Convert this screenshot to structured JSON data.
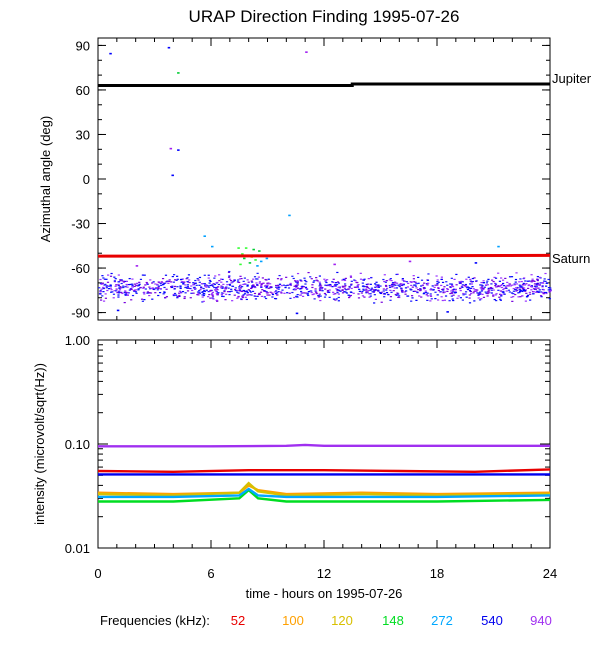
{
  "title": "URAP Direction Finding  1995-07-26",
  "xlabel": "time - hours on 1995-07-26",
  "freq_label": "Frequencies (kHz):",
  "chart_data": [
    {
      "type": "scatter",
      "title": "URAP Direction Finding  1995-07-26",
      "ylabel": "Azimuthal angle (deg)",
      "xlim": [
        0,
        24
      ],
      "ylim": [
        -95,
        95
      ],
      "xticks": [
        0,
        6,
        12,
        18,
        24
      ],
      "yticks": [
        90,
        60,
        30,
        0,
        -30,
        -60,
        -90
      ],
      "ytick_labels": [
        "90",
        "60",
        "30",
        "0",
        "-30",
        "-60",
        "-90"
      ],
      "reference_lines": [
        {
          "name": "Jupiter",
          "color": "#000000",
          "points": [
            [
              0,
              63
            ],
            [
              13.5,
              63
            ],
            [
              13.5,
              64
            ],
            [
              24,
              64
            ]
          ]
        },
        {
          "name": "Saturn",
          "color": "#e80000",
          "points": [
            [
              0,
              -52
            ],
            [
              24,
              -51.5
            ]
          ]
        }
      ],
      "main_band": {
        "y_center": -73,
        "y_spread": 12,
        "colors": [
          "#9933ff",
          "#7700dd",
          "#0000ff",
          "#1a1aff"
        ]
      },
      "scatter_points": [
        {
          "x": 0.6,
          "y": 85,
          "color": "#0000ff"
        },
        {
          "x": 3.7,
          "y": 89,
          "color": "#0000ff"
        },
        {
          "x": 4.2,
          "y": 72,
          "color": "#00cc33"
        },
        {
          "x": 11,
          "y": 86,
          "color": "#a020f0"
        },
        {
          "x": 3.8,
          "y": 21,
          "color": "#a020f0"
        },
        {
          "x": 4.2,
          "y": 20,
          "color": "#0000ff"
        },
        {
          "x": 3.9,
          "y": 3,
          "color": "#0000ff"
        },
        {
          "x": 10.1,
          "y": -24,
          "color": "#00a0ff"
        },
        {
          "x": 5.6,
          "y": -38,
          "color": "#00a0ff"
        },
        {
          "x": 21.2,
          "y": -45,
          "color": "#00a0ff"
        },
        {
          "x": 6.0,
          "y": -45,
          "color": "#00a0ff"
        },
        {
          "x": 7.4,
          "y": -46,
          "color": "#33ff33"
        },
        {
          "x": 7.8,
          "y": -46,
          "color": "#33ff33"
        },
        {
          "x": 8.2,
          "y": -47,
          "color": "#00cc33"
        },
        {
          "x": 8.5,
          "y": -48,
          "color": "#00cc33"
        },
        {
          "x": 7.6,
          "y": -50,
          "color": "#33ff33"
        },
        {
          "x": 7.9,
          "y": -51,
          "color": "#e8c800"
        },
        {
          "x": 8.1,
          "y": -52,
          "color": "#ffaa00"
        },
        {
          "x": 7.7,
          "y": -53,
          "color": "#00cc33"
        },
        {
          "x": 8.3,
          "y": -54,
          "color": "#33ff33"
        },
        {
          "x": 8.0,
          "y": -56,
          "color": "#00cc33"
        },
        {
          "x": 8.6,
          "y": -55,
          "color": "#00a0ff"
        },
        {
          "x": 7.5,
          "y": -57,
          "color": "#33ff33"
        },
        {
          "x": 8.4,
          "y": -58,
          "color": "#00a0ff"
        },
        {
          "x": 8.9,
          "y": -53,
          "color": "#00a0ff"
        },
        {
          "x": 16.5,
          "y": -55,
          "color": "#a020f0"
        },
        {
          "x": 2.0,
          "y": -58,
          "color": "#a020f0"
        },
        {
          "x": 12.5,
          "y": -57,
          "color": "#a020f0"
        },
        {
          "x": 20.0,
          "y": -56,
          "color": "#0000ff"
        },
        {
          "x": 1.0,
          "y": -88,
          "color": "#0000ff"
        },
        {
          "x": 10.5,
          "y": -90,
          "color": "#0000ff"
        },
        {
          "x": 18.5,
          "y": -89,
          "color": "#0000ff"
        }
      ]
    },
    {
      "type": "line",
      "ylabel": "intensity (microvolt/sqrt(Hz))",
      "xlabel": "time - hours on 1995-07-26",
      "yscale": "log",
      "xlim": [
        0,
        24
      ],
      "ylim": [
        0.01,
        1.0
      ],
      "xticks": [
        0,
        6,
        12,
        18,
        24
      ],
      "xtick_labels": [
        "0",
        "6",
        "12",
        "18",
        "24"
      ],
      "yticks": [
        1.0,
        0.1,
        0.01
      ],
      "ytick_labels": [
        "1.00",
        "0.10",
        "0.01"
      ],
      "series": [
        {
          "name": "52",
          "color": "#e80000",
          "x": [
            0,
            4,
            8,
            12,
            16,
            20,
            24
          ],
          "values": [
            0.055,
            0.054,
            0.056,
            0.056,
            0.055,
            0.054,
            0.057
          ]
        },
        {
          "name": "100",
          "color": "#ffa000",
          "x": [
            0,
            4,
            7.5,
            8,
            8.5,
            10,
            14,
            18,
            24
          ],
          "values": [
            0.034,
            0.033,
            0.034,
            0.04,
            0.036,
            0.033,
            0.034,
            0.033,
            0.034
          ]
        },
        {
          "name": "120",
          "color": "#d8c000",
          "x": [
            0,
            4,
            7.5,
            8,
            8.5,
            10,
            14,
            18,
            24
          ],
          "values": [
            0.033,
            0.032,
            0.034,
            0.042,
            0.035,
            0.032,
            0.033,
            0.032,
            0.033
          ]
        },
        {
          "name": "148",
          "color": "#00dd22",
          "x": [
            0,
            4,
            7.5,
            8,
            8.5,
            10,
            14,
            18,
            24
          ],
          "values": [
            0.028,
            0.028,
            0.03,
            0.036,
            0.03,
            0.028,
            0.028,
            0.028,
            0.029
          ]
        },
        {
          "name": "272",
          "color": "#00a8ff",
          "x": [
            0,
            4,
            7.5,
            8,
            8.5,
            10,
            14,
            18,
            24
          ],
          "values": [
            0.031,
            0.031,
            0.032,
            0.037,
            0.032,
            0.031,
            0.031,
            0.031,
            0.032
          ]
        },
        {
          "name": "540",
          "color": "#0000ee",
          "x": [
            0,
            6,
            12,
            18,
            24
          ],
          "values": [
            0.051,
            0.051,
            0.051,
            0.051,
            0.051
          ]
        },
        {
          "name": "940",
          "color": "#a030f0",
          "x": [
            0,
            6,
            10,
            11,
            12,
            18,
            24
          ],
          "values": [
            0.095,
            0.095,
            0.096,
            0.098,
            0.096,
            0.096,
            0.096
          ]
        }
      ]
    }
  ]
}
